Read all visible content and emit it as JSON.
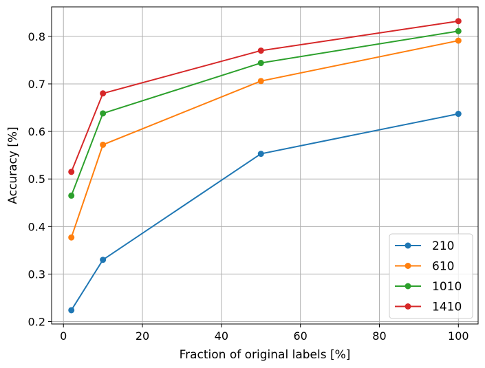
{
  "chart_data": {
    "type": "line",
    "title": "",
    "xlabel": "Fraction of original labels [%]",
    "ylabel": "Accuracy [%]",
    "xlim": [
      -3,
      105
    ],
    "ylim": [
      0.195,
      0.862
    ],
    "xticks": [
      0,
      20,
      40,
      60,
      80,
      100
    ],
    "xtick_labels": [
      "0",
      "20",
      "40",
      "60",
      "80",
      "100"
    ],
    "yticks": [
      0.2,
      0.3,
      0.4,
      0.5,
      0.6,
      0.7,
      0.8
    ],
    "ytick_labels": [
      "0.2",
      "0.3",
      "0.4",
      "0.5",
      "0.6",
      "0.7",
      "0.8"
    ],
    "grid": true,
    "legend_position": "lower-right",
    "x": [
      2,
      10,
      50,
      100
    ],
    "series": [
      {
        "name": "210",
        "color": "#1f77b4",
        "values": [
          0.224,
          0.33,
          0.553,
          0.637
        ]
      },
      {
        "name": "610",
        "color": "#ff7f0e",
        "values": [
          0.377,
          0.572,
          0.706,
          0.791
        ]
      },
      {
        "name": "1010",
        "color": "#2ca02c",
        "values": [
          0.465,
          0.638,
          0.744,
          0.811
        ]
      },
      {
        "name": "1410",
        "color": "#d62728",
        "values": [
          0.515,
          0.68,
          0.77,
          0.832
        ]
      }
    ]
  }
}
